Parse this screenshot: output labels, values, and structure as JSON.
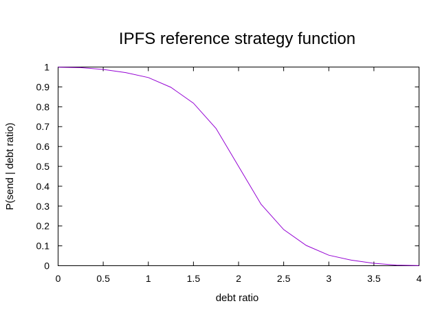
{
  "chart_data": {
    "type": "line",
    "title": "IPFS reference strategy function",
    "xlabel": "debt ratio",
    "ylabel": "P(send | debt ratio)",
    "xlim": [
      0,
      4
    ],
    "ylim": [
      0,
      1
    ],
    "x_ticks": [
      "0",
      "0.5",
      "1",
      "1.5",
      "2",
      "2.5",
      "3",
      "3.5",
      "4"
    ],
    "y_ticks": [
      "0",
      "0.1",
      "0.2",
      "0.3",
      "0.4",
      "0.5",
      "0.6",
      "0.7",
      "0.8",
      "0.9",
      "1"
    ],
    "grid": false,
    "legend": "none",
    "series": [
      {
        "color": "#9400d3",
        "x": [
          0,
          0.25,
          0.5,
          0.75,
          1.0,
          1.25,
          1.5,
          1.75,
          2.0,
          2.25,
          2.5,
          2.75,
          3.0,
          3.25,
          3.5,
          3.75,
          4.0
        ],
        "y": [
          0.999,
          0.997,
          0.988,
          0.972,
          0.947,
          0.898,
          0.818,
          0.691,
          0.5,
          0.309,
          0.182,
          0.102,
          0.053,
          0.028,
          0.012,
          0.003,
          0.001
        ]
      }
    ]
  }
}
